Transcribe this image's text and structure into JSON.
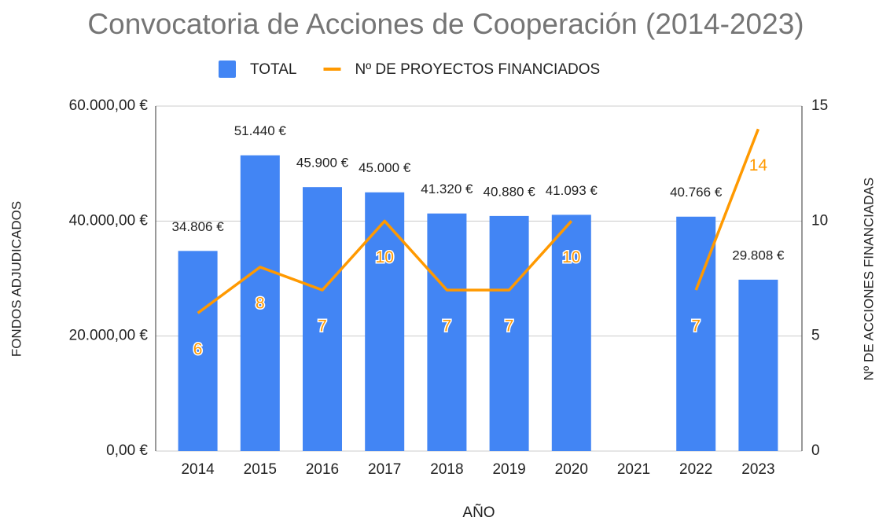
{
  "chart_data": {
    "type": "bar_line",
    "title": "Convocatoria de Acciones de Cooperación (2014-2023)",
    "x_label": "AÑO",
    "y_label": "FONDOS ADJUDICADOS",
    "y2_label": "Nº DE ACCIONES FINANCIADAS",
    "categories": [
      "2014",
      "2015",
      "2016",
      "2017",
      "2018",
      "2019",
      "2020",
      "2021",
      "2022",
      "2023"
    ],
    "series": [
      {
        "name": "TOTAL",
        "type": "bar",
        "color": "#4285f4",
        "values": [
          34806,
          51440,
          45900,
          45000,
          41320,
          40880,
          41093,
          null,
          40766,
          29808
        ],
        "value_labels": [
          "34.806 €",
          "51.440 €",
          "45.900 €",
          "45.000 €",
          "41.320 €",
          "40.880 €",
          "41.093 €",
          null,
          "40.766 €",
          "29.808 €"
        ]
      },
      {
        "name": "Nº DE PROYECTOS FINANCIADOS",
        "type": "line",
        "axis": "y2",
        "color": "#ff9900",
        "values": [
          6,
          8,
          7,
          10,
          7,
          7,
          10,
          null,
          7,
          14
        ]
      }
    ],
    "ylim": [
      0,
      60000
    ],
    "yticks": [
      {
        "value": 0,
        "label": "0,00 €"
      },
      {
        "value": 20000,
        "label": "20.000,00 €"
      },
      {
        "value": 40000,
        "label": "40.000,00 €"
      },
      {
        "value": 60000,
        "label": "60.000,00 €"
      }
    ],
    "y2lim": [
      0,
      15
    ],
    "y2ticks": [
      0,
      5,
      10,
      15
    ],
    "grid": true,
    "legend": "top"
  }
}
